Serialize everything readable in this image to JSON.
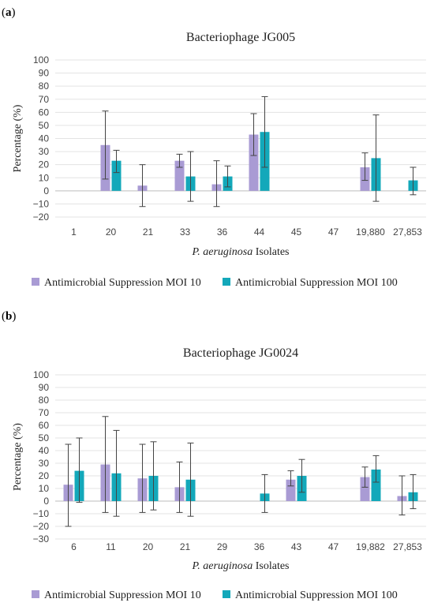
{
  "chart_data": [
    {
      "type": "bar",
      "panel": "(a)",
      "title": "Bacteriophage JG005",
      "ylabel": "Percentage (%)",
      "xlabel_italic": "P. aeruginosa",
      "xlabel_rest": " Isolates",
      "ylim": [
        -20,
        100
      ],
      "yticks": [
        -20,
        -10,
        0,
        10,
        20,
        30,
        40,
        50,
        60,
        70,
        80,
        90,
        100
      ],
      "categories": [
        "1",
        "20",
        "21",
        "33",
        "36",
        "44",
        "45",
        "47",
        "19,880",
        "27,853"
      ],
      "series": [
        {
          "name": "Antimicrobial Suppression MOI 10",
          "color": "#a99bd4",
          "values": [
            null,
            35,
            4,
            23,
            5,
            43,
            null,
            null,
            18,
            null
          ],
          "err_low": [
            null,
            9,
            -12,
            18,
            -12,
            27,
            null,
            null,
            8,
            null
          ],
          "err_high": [
            null,
            61,
            20,
            28,
            23,
            59,
            null,
            null,
            29,
            null
          ]
        },
        {
          "name": "Antimicrobial Suppression MOI 100",
          "color": "#13a8ba",
          "values": [
            null,
            23,
            null,
            11,
            11,
            45,
            null,
            null,
            25,
            8
          ],
          "err_low": [
            null,
            14,
            null,
            -8,
            3,
            18,
            null,
            null,
            -8,
            -3
          ],
          "err_high": [
            null,
            31,
            null,
            30,
            19,
            72,
            null,
            null,
            58,
            18
          ]
        }
      ]
    },
    {
      "type": "bar",
      "panel": "(b)",
      "title": "Bacteriophage JG0024",
      "ylabel": "Percentage (%)",
      "xlabel_italic": "P. aeruginosa",
      "xlabel_rest": " Isolates",
      "ylim": [
        -30,
        100
      ],
      "yticks": [
        -30,
        -20,
        -10,
        0,
        10,
        20,
        30,
        40,
        50,
        60,
        70,
        80,
        90,
        100
      ],
      "categories": [
        "6",
        "11",
        "20",
        "21",
        "29",
        "36",
        "43",
        "47",
        "19,882",
        "27,853"
      ],
      "series": [
        {
          "name": "Antimicrobial Suppression MOI 10",
          "color": "#a99bd4",
          "values": [
            13,
            29,
            18,
            11,
            null,
            null,
            17,
            null,
            19,
            4
          ],
          "err_low": [
            -20,
            -9,
            -9,
            -9,
            null,
            null,
            12,
            null,
            11,
            -11
          ],
          "err_high": [
            45,
            67,
            45,
            31,
            null,
            null,
            24,
            null,
            27,
            20
          ]
        },
        {
          "name": "Antimicrobial Suppression MOI 100",
          "color": "#13a8ba",
          "values": [
            24,
            22,
            20,
            17,
            null,
            6,
            20,
            null,
            25,
            7
          ],
          "err_low": [
            -1,
            -12,
            -7,
            -12,
            null,
            -9,
            7,
            null,
            15,
            -6
          ],
          "err_high": [
            50,
            56,
            47,
            46,
            null,
            21,
            33,
            null,
            36,
            21
          ]
        }
      ]
    }
  ]
}
